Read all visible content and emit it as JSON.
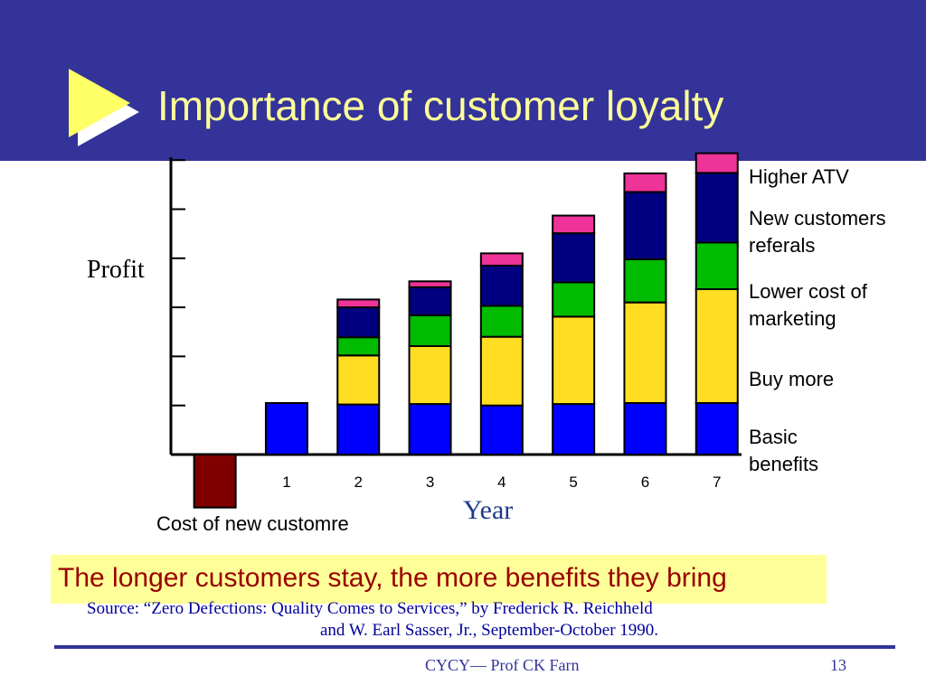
{
  "slide": {
    "title": "Importance of customer loyalty",
    "conclusion": "The longer customers stay, the more benefits they bring",
    "source_line1": "Source:   “Zero Defections: Quality Comes to Services,” by Frederick R. Reichheld",
    "source_line2": "and W. Earl Sasser, Jr., September-October 1990.",
    "footer": "CYCY— Prof CK Farn",
    "page_number": "13"
  },
  "colors": {
    "header_bg": "#333399",
    "title": "#ffff99",
    "conclusion_bg": "#ffff99",
    "conclusion_text": "#990000"
  },
  "chart_data": {
    "type": "bar",
    "stacked": true,
    "xlabel": "Year",
    "ylabel": "Profit",
    "categories": [
      "0",
      "1",
      "2",
      "3",
      "4",
      "5",
      "6",
      "7"
    ],
    "category_labels": [
      "",
      "1",
      "2",
      "3",
      "4",
      "5",
      "6",
      "7"
    ],
    "ylim": [
      -1.08,
      6.2
    ],
    "y_tick_values": [
      0,
      1,
      2,
      3,
      4,
      5,
      6
    ],
    "y_tick_labels_shown": false,
    "legend_placement": "right",
    "series": [
      {
        "name": "Basic benefits",
        "color": "#0000ff",
        "values": [
          0,
          1.05,
          1.02,
          1.03,
          1.0,
          1.03,
          1.05,
          1.05
        ]
      },
      {
        "name": "Buy more",
        "color": "#ffdd22",
        "values": [
          0,
          0,
          1.0,
          1.18,
          1.4,
          1.78,
          2.05,
          2.32
        ]
      },
      {
        "name": "Lower cost of marketing",
        "color": "#00bb00",
        "values": [
          0,
          0,
          0.37,
          0.63,
          0.63,
          0.7,
          0.88,
          0.95
        ]
      },
      {
        "name": "New customers referals",
        "color": "#000080",
        "values": [
          0,
          0,
          0.61,
          0.57,
          0.82,
          1.0,
          1.37,
          1.42
        ]
      },
      {
        "name": "Higher ATV",
        "color": "#ee3399",
        "values": [
          0,
          0,
          0.16,
          0.12,
          0.25,
          0.36,
          0.38,
          0.4
        ]
      }
    ],
    "negative": {
      "name": "Cost of new customre",
      "label": "Cost of new customre",
      "category": "0",
      "value": -1.08,
      "color": "#800000"
    },
    "legend_labels": [
      {
        "key": "higher_atv",
        "lines": [
          "Higher ATV"
        ]
      },
      {
        "key": "new_customers",
        "lines": [
          "New customers",
          "referals"
        ]
      },
      {
        "key": "lower_cost",
        "lines": [
          "Lower cost of",
          "marketing"
        ]
      },
      {
        "key": "buy_more",
        "lines": [
          "Buy more"
        ]
      },
      {
        "key": "basic",
        "lines": [
          "Basic",
          "benefits"
        ]
      }
    ]
  }
}
